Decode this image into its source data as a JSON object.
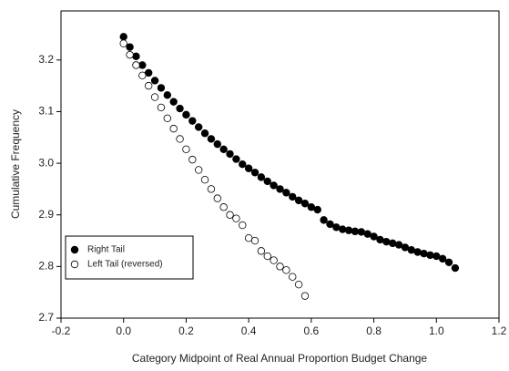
{
  "chart_data": {
    "type": "scatter",
    "xlabel": "Category Midpoint of Real Annual Proportion Budget Change",
    "ylabel": "Cumulative Frequency",
    "xlim": [
      -0.2,
      1.2
    ],
    "xticks": [
      -0.2,
      {
        "value": 0,
        "label": "0.0"
      },
      0.2,
      0.4,
      0.6,
      0.8,
      {
        "value": 1,
        "label": "1.0"
      },
      1.2
    ],
    "ylim": [
      2.7,
      3.295
    ],
    "yticks": [
      2.7,
      2.8,
      2.9,
      {
        "value": 3,
        "label": "3.0"
      },
      3.1,
      3.2
    ],
    "legend": "lower left",
    "series": [
      {
        "name": "Right Tail",
        "color": "#000000",
        "fill": "#000000",
        "x": [
          0,
          0.02,
          0.04,
          0.06,
          0.08,
          0.1,
          0.12,
          0.14,
          0.16,
          0.18,
          0.2,
          0.22,
          0.24,
          0.26,
          0.28,
          0.3,
          0.32,
          0.34,
          0.36,
          0.38,
          0.4,
          0.42,
          0.44,
          0.46,
          0.48,
          0.5,
          0.52,
          0.54,
          0.56,
          0.58,
          0.6,
          0.62,
          0.64,
          0.66,
          0.68,
          0.7,
          0.72,
          0.74,
          0.76,
          0.78,
          0.8,
          0.82,
          0.84,
          0.86,
          0.88,
          0.9,
          0.92,
          0.94,
          0.96,
          0.98,
          1,
          1.02,
          1.04,
          1.06
        ],
        "values": [
          3.245,
          3.225,
          3.207,
          3.19,
          3.175,
          3.16,
          3.146,
          3.132,
          3.119,
          3.106,
          3.094,
          3.082,
          3.07,
          3.058,
          3.047,
          3.037,
          3.027,
          3.018,
          3.008,
          2.998,
          2.99,
          2.982,
          2.973,
          2.965,
          2.957,
          2.95,
          2.943,
          2.935,
          2.928,
          2.922,
          2.915,
          2.91,
          2.89,
          2.882,
          2.876,
          2.872,
          2.87,
          2.868,
          2.867,
          2.863,
          2.858,
          2.852,
          2.848,
          2.845,
          2.842,
          2.837,
          2.832,
          2.828,
          2.825,
          2.822,
          2.82,
          2.815,
          2.808,
          2.797
        ]
      },
      {
        "name": "Left Tail (reversed)",
        "color": "#000000",
        "fill": "#ffffff",
        "x": [
          0,
          0.02,
          0.04,
          0.06,
          0.08,
          0.1,
          0.12,
          0.14,
          0.16,
          0.18,
          0.2,
          0.22,
          0.24,
          0.26,
          0.28,
          0.3,
          0.32,
          0.34,
          0.36,
          0.38,
          0.4,
          0.42,
          0.44,
          0.46,
          0.48,
          0.5,
          0.52,
          0.54,
          0.56,
          0.58
        ],
        "values": [
          3.232,
          3.21,
          3.19,
          3.17,
          3.15,
          3.128,
          3.108,
          3.087,
          3.067,
          3.047,
          3.027,
          3.007,
          2.987,
          2.968,
          2.95,
          2.932,
          2.915,
          2.9,
          2.893,
          2.88,
          2.855,
          2.85,
          2.83,
          2.82,
          2.812,
          2.8,
          2.793,
          2.78,
          2.765,
          2.743
        ]
      }
    ]
  }
}
